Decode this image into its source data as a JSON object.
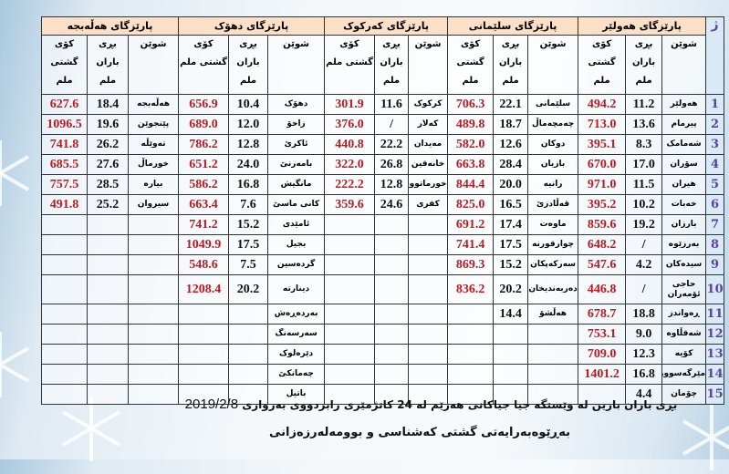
{
  "header": {
    "number_label": "ژ",
    "place_label": "شوێن",
    "rain_label": "بڕی باران ملم",
    "total_label": "کۆی گشتی ملم"
  },
  "provinces": [
    {
      "name": "پارێزگای هەولێر",
      "rows": [
        [
          "هەولێر",
          "11.2",
          "494.2"
        ],
        [
          "پیرمام",
          "13.6",
          "713.0"
        ],
        [
          "شەمامک",
          "8.3",
          "395.1"
        ],
        [
          "سۆران",
          "17.0",
          "670.0"
        ],
        [
          "هیران",
          "11.5",
          "971.0"
        ],
        [
          "خەبات",
          "10.2",
          "395.2"
        ],
        [
          "بارزان",
          "19.2",
          "859.6"
        ],
        [
          "بەرزێوە",
          "/",
          "648.2"
        ],
        [
          "سیدەکان",
          "4.2",
          "547.6"
        ],
        [
          "حاجی ئۆمەران",
          "/",
          "446.8"
        ],
        [
          "ڕەواندز",
          "18.8",
          "678.7"
        ],
        [
          "شەقڵاوە",
          "9.0",
          "753.1"
        ],
        [
          "کۆیە",
          "12.3",
          "709.0"
        ],
        [
          "مێرگەسوور",
          "16.8",
          "1401.2"
        ],
        [
          "چۆمان",
          "4.4",
          ""
        ]
      ]
    },
    {
      "name": "پارێزگای سلێمانی",
      "rows": [
        [
          "سلێمانی",
          "22.1",
          "706.3"
        ],
        [
          "چەمچەماڵ",
          "18.7",
          "489.8"
        ],
        [
          "دوکان",
          "12.6",
          "582.0"
        ],
        [
          "بازیان",
          "28.4",
          "663.8"
        ],
        [
          "رانیە",
          "20.0",
          "844.4"
        ],
        [
          "قەڵادزێ",
          "16.5",
          "825.0"
        ],
        [
          "ماوەت",
          "17.4",
          "691.2"
        ],
        [
          "چوارقورنە",
          "17.5",
          "741.4"
        ],
        [
          "سەرکەپکان",
          "15.2",
          "869.3"
        ],
        [
          "دەربەندیخان",
          "20.2",
          "836.2"
        ],
        [
          "هەڵشۆ",
          "14.4",
          ""
        ],
        [
          "",
          "",
          ""
        ],
        [
          "",
          "",
          ""
        ],
        [
          "",
          "",
          ""
        ],
        [
          "",
          "",
          ""
        ]
      ]
    },
    {
      "name": "پارێزگای کەرکوک",
      "rows": [
        [
          "کرکوک",
          "11.6",
          "301.9"
        ],
        [
          "کەلار",
          "/",
          "376.0"
        ],
        [
          "مەیدان",
          "22.2",
          "440.8"
        ],
        [
          "خانەقین",
          "26.8",
          "322.0"
        ],
        [
          "خورماتوو",
          "12.8",
          "222.2"
        ],
        [
          "کفری",
          "24.6",
          "359.6"
        ],
        [
          "",
          "",
          ""
        ],
        [
          "",
          "",
          ""
        ],
        [
          "",
          "",
          ""
        ],
        [
          "",
          "",
          ""
        ],
        [
          "",
          "",
          ""
        ],
        [
          "",
          "",
          ""
        ],
        [
          "",
          "",
          ""
        ],
        [
          "",
          "",
          ""
        ],
        [
          "",
          "",
          ""
        ]
      ]
    },
    {
      "name": "پارێزگای دهۆک",
      "rows": [
        [
          "دهۆک",
          "10.4",
          "656.9"
        ],
        [
          "زاخۆ",
          "12.0",
          "689.0"
        ],
        [
          "ئاکرێ",
          "12.8",
          "786.2"
        ],
        [
          "بامەرنێ",
          "24.0",
          "651.2"
        ],
        [
          "مانگیش",
          "16.8",
          "586.2"
        ],
        [
          "کانی ماسێ",
          "7.6",
          "663.4"
        ],
        [
          "ئامێدی",
          "15.2",
          "741.2"
        ],
        [
          "بجیل",
          "17.5",
          "1049.9"
        ],
        [
          "گردەسین",
          "7.5",
          "548.6"
        ],
        [
          "دینارتە",
          "20.2",
          "1208.4"
        ],
        [
          "بەردەڕەش",
          "",
          ""
        ],
        [
          "سەرسەنگ",
          "",
          ""
        ],
        [
          "دێرەلوک",
          "",
          ""
        ],
        [
          "چەمانکێ",
          "",
          ""
        ],
        [
          "باتیل",
          "",
          ""
        ]
      ]
    },
    {
      "name": "پارێزگای هەڵەبجە",
      "rows": [
        [
          "هەڵەبجە",
          "18.4",
          "627.6"
        ],
        [
          "پێنجوێن",
          "19.6",
          "1096.5"
        ],
        [
          "تەوێڵە",
          "26.2",
          "741.8"
        ],
        [
          "خورماڵ",
          "27.6",
          "685.5"
        ],
        [
          "بیارە",
          "28.5",
          "757.5"
        ],
        [
          "سیروان",
          "25.2",
          "491.8"
        ],
        [
          "",
          "",
          ""
        ],
        [
          "",
          "",
          ""
        ],
        [
          "",
          "",
          ""
        ],
        [
          "",
          "",
          ""
        ],
        [
          "",
          "",
          ""
        ],
        [
          "",
          "",
          ""
        ],
        [
          "",
          "",
          ""
        ],
        [
          "",
          "",
          ""
        ],
        [
          "",
          "",
          ""
        ]
      ]
    }
  ],
  "row_numbers": [
    "1",
    "2",
    "3",
    "4",
    "5",
    "6",
    "7",
    "8",
    "9",
    "10",
    "11",
    "12",
    "13",
    "14",
    "15"
  ],
  "footer": {
    "line1_text": "بڕی باران بارین لە وێستگە جیا جیاکانی هەرێم لە 24 کاتژمێری رابردووی بەرواری",
    "line1_date": "2019/2/8",
    "line2": "بەڕێوەبەرایەتی گشتی کەشناسی و بوومەلەرزەزانی"
  },
  "colors": {
    "total_value": "#c0181f",
    "row_number": "#5b3fa3",
    "province_header_bg": "#fbdfc7",
    "number_column_bg": "#d9eaf6"
  }
}
